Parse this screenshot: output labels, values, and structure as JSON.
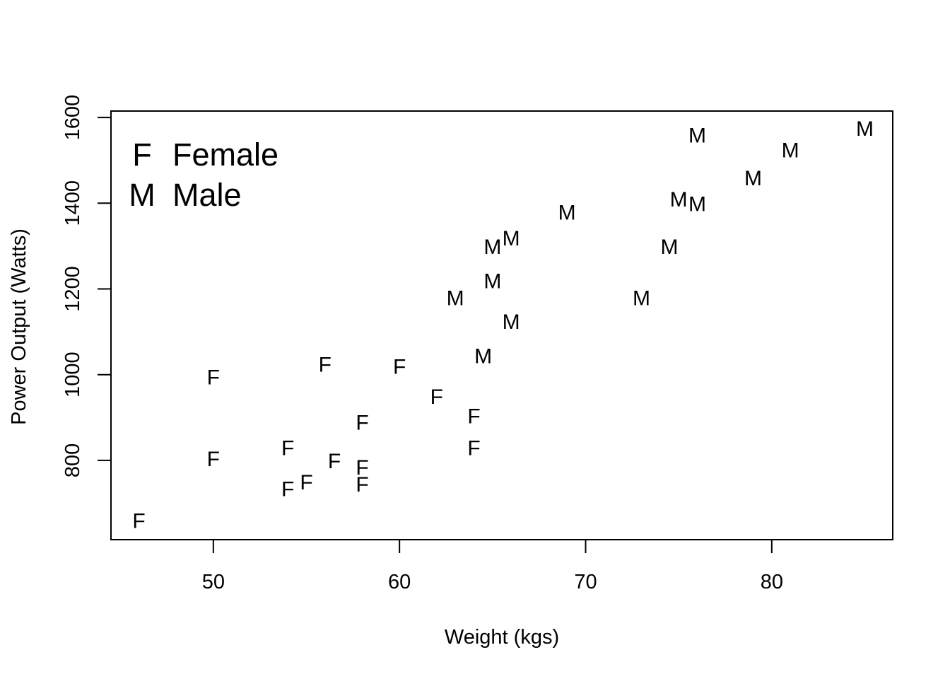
{
  "chart_data": {
    "type": "scatter",
    "title": "",
    "xlabel": "Weight (kgs)",
    "ylabel": "Power Output (Watts)",
    "xlim": [
      44.5,
      86.5
    ],
    "ylim": [
      615,
      1615
    ],
    "x_ticks": [
      50,
      60,
      70,
      80
    ],
    "y_ticks": [
      800,
      1000,
      1200,
      1400,
      1600
    ],
    "grid": false,
    "legend_position": "top-left",
    "legend": [
      {
        "symbol": "F",
        "label": "Female"
      },
      {
        "symbol": "M",
        "label": "Male"
      }
    ],
    "series": [
      {
        "name": "Female",
        "symbol": "F",
        "points": [
          {
            "x": 46,
            "y": 660
          },
          {
            "x": 50,
            "y": 995
          },
          {
            "x": 50,
            "y": 805
          },
          {
            "x": 54,
            "y": 830
          },
          {
            "x": 54,
            "y": 735
          },
          {
            "x": 55,
            "y": 750
          },
          {
            "x": 56,
            "y": 1025
          },
          {
            "x": 56.5,
            "y": 800
          },
          {
            "x": 58,
            "y": 890
          },
          {
            "x": 58,
            "y": 785
          },
          {
            "x": 58,
            "y": 745
          },
          {
            "x": 60,
            "y": 1020
          },
          {
            "x": 62,
            "y": 950
          },
          {
            "x": 64,
            "y": 905
          },
          {
            "x": 64,
            "y": 830
          }
        ]
      },
      {
        "name": "Male",
        "symbol": "M",
        "points": [
          {
            "x": 63,
            "y": 1180
          },
          {
            "x": 64.5,
            "y": 1045
          },
          {
            "x": 65,
            "y": 1220
          },
          {
            "x": 65,
            "y": 1300
          },
          {
            "x": 66,
            "y": 1320
          },
          {
            "x": 66,
            "y": 1125
          },
          {
            "x": 69,
            "y": 1380
          },
          {
            "x": 73,
            "y": 1180
          },
          {
            "x": 74.5,
            "y": 1300
          },
          {
            "x": 75,
            "y": 1410
          },
          {
            "x": 76,
            "y": 1400
          },
          {
            "x": 76,
            "y": 1560
          },
          {
            "x": 79,
            "y": 1460
          },
          {
            "x": 81,
            "y": 1525
          },
          {
            "x": 85,
            "y": 1575
          }
        ]
      }
    ]
  }
}
